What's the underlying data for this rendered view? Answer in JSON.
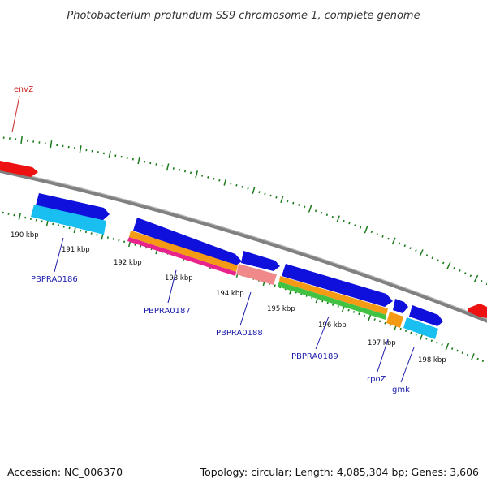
{
  "title": "Photobacterium profundum SS9 chromosome 1, complete genome",
  "footer": {
    "accession": "Accession: NC_006370",
    "summary": "Topology: circular; Length: 4,085,304 bp; Genes: 3,606"
  },
  "colors": {
    "background": "#ffffff",
    "backbone": "#808080",
    "tick": "#1a7a1a",
    "cds_forward": "#1010dd",
    "cds_reverse": "#ee1111",
    "label_blue": "#1a1aaa",
    "label_red": "#cc2222",
    "gene_cyan": "#19bff0",
    "gene_orange": "#f59a15",
    "gene_pink": "#e8248c",
    "gene_salmon": "#f08a8a",
    "gene_green": "#42c242"
  },
  "kbp_labels": [
    "190 kbp",
    "191 kbp",
    "192 kbp",
    "193 kbp",
    "194 kbp",
    "195 kbp",
    "196 kbp",
    "197 kbp",
    "198 kbp"
  ],
  "gene_labels": [
    {
      "name": "envZ",
      "style": "red"
    },
    {
      "name": "PBPRA0186",
      "style": "blue"
    },
    {
      "name": "PBPRA0187",
      "style": "blue"
    },
    {
      "name": "PBPRA0188",
      "style": "blue"
    },
    {
      "name": "PBPRA0189",
      "style": "blue"
    },
    {
      "name": "rpoZ",
      "style": "blue"
    },
    {
      "name": "gmk",
      "style": "blue"
    }
  ]
}
